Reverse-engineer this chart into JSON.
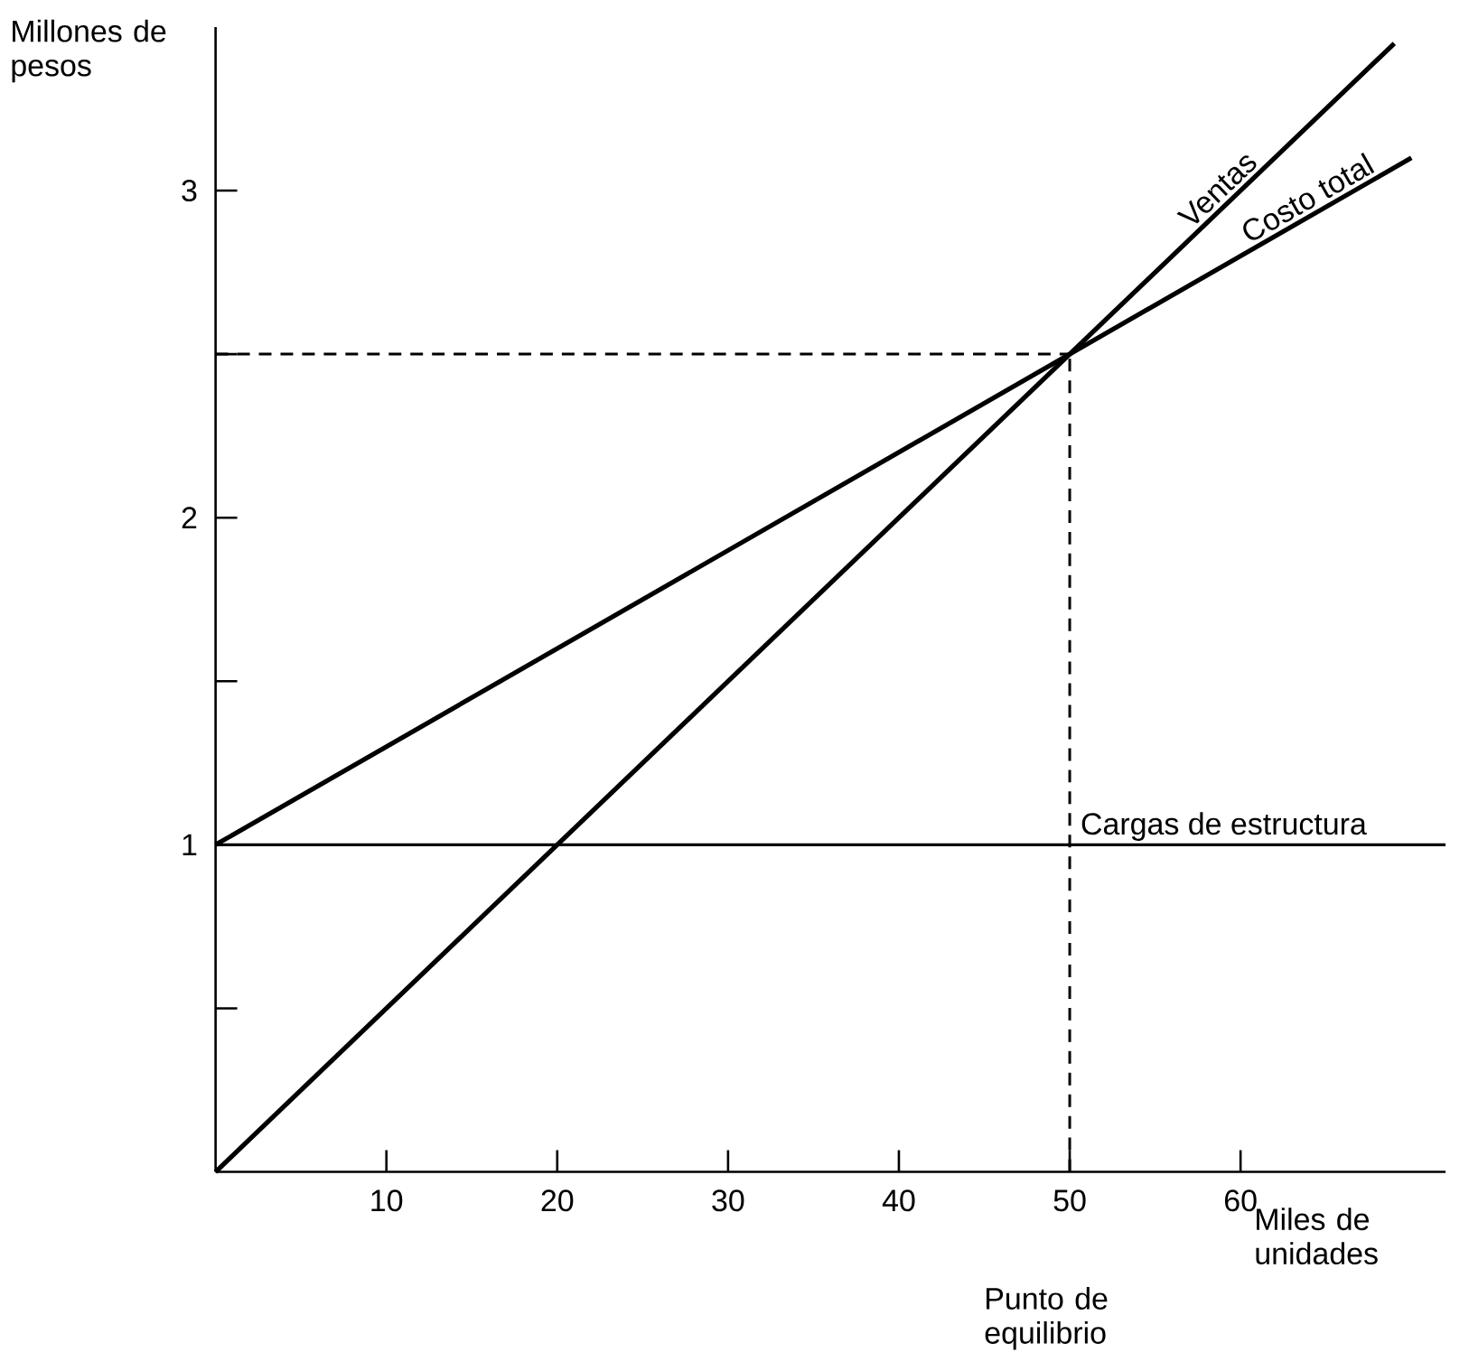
{
  "chart_data": {
    "type": "line",
    "xlabel": "Miles de unidades",
    "ylabel": "Millones de pesos",
    "xlim": [
      0,
      72
    ],
    "ylim": [
      0,
      3.5
    ],
    "xticks": [
      10,
      20,
      30,
      40,
      50,
      60
    ],
    "yticks": [
      {
        "value": 0.5,
        "label": null
      },
      1,
      {
        "value": 1.5,
        "label": null
      },
      2,
      {
        "value": 2.5,
        "label": null
      },
      3
    ],
    "series": [
      {
        "name": "Ventas",
        "color": "#000000",
        "x": [
          0,
          69
        ],
        "values": [
          0,
          3.45
        ]
      },
      {
        "name": "Costo total",
        "color": "#000000",
        "x": [
          0,
          70
        ],
        "values": [
          1,
          3.1
        ]
      }
    ],
    "ref_lines": [
      {
        "axis": "y",
        "value": 1,
        "label": "Cargas de estructura"
      },
      {
        "axis": "y",
        "value": 2.5,
        "line_style": "dashed"
      },
      {
        "axis": "x",
        "value": 50,
        "line_style": "dashed"
      }
    ],
    "annotations": [
      "Punto de equilibrio"
    ]
  }
}
